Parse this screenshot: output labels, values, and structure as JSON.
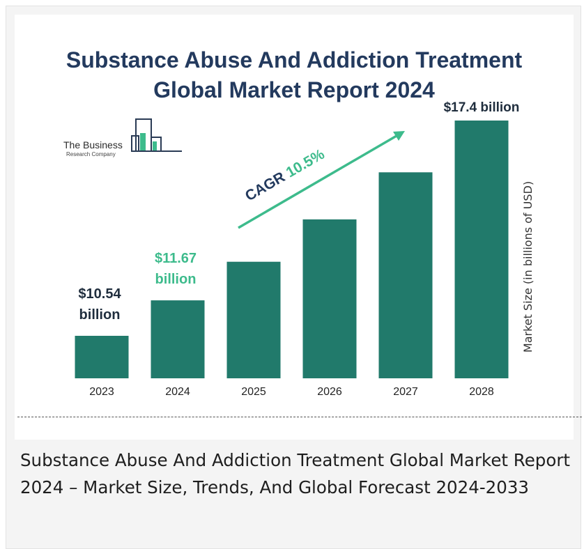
{
  "chart_data": {
    "type": "bar",
    "title": "Substance Abuse And Addiction Treatment\nGlobal Market Report 2024",
    "categories": [
      "2023",
      "2024",
      "2025",
      "2026",
      "2027",
      "2028"
    ],
    "values": [
      10.54,
      11.67,
      12.9,
      14.25,
      15.75,
      17.4
    ],
    "ylabel": "Market Size (in billions of USD)",
    "xlabel": "",
    "data_labels": [
      {
        "index": 0,
        "line1": "$10.54",
        "line2": "billion",
        "color": "#1f2d3d"
      },
      {
        "index": 1,
        "line1": "$11.67",
        "line2": "billion",
        "color": "#3dbb8c"
      },
      {
        "index": 5,
        "line1": "$17.4 billion",
        "line2": "",
        "color": "#1f2d3d"
      }
    ],
    "annotation": {
      "prefix": "CAGR ",
      "value": "10.5%"
    },
    "bar_color": "#217a6b",
    "accent_color": "#3dbb8c",
    "grid": false
  },
  "logo": {
    "line1": "The Business",
    "line2": "Research Company"
  },
  "caption": "Substance Abuse And Addiction Treatment Global Market Report 2024 – Market Size, Trends, And Global Forecast 2024-2033"
}
